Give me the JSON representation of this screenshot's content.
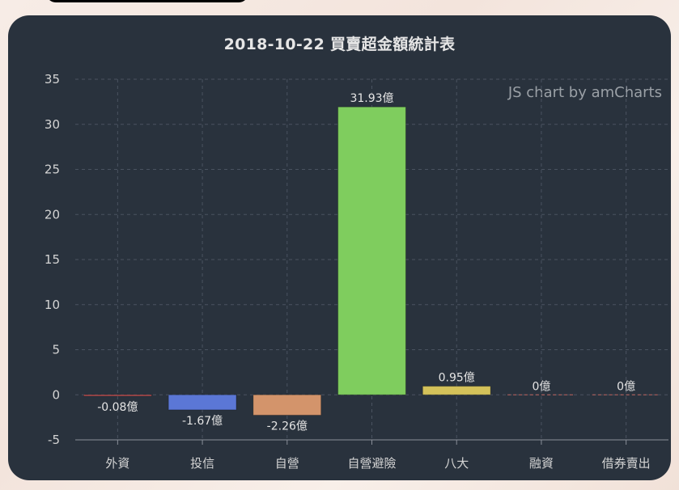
{
  "window": {
    "topbar": ""
  },
  "chart_data": {
    "type": "bar",
    "title": "2018-10-22 買賣超金額統計表",
    "credit": "JS chart by amCharts",
    "xlabel": "",
    "ylabel": "",
    "unit": "億",
    "ylim": [
      -5,
      35
    ],
    "yticks": [
      35,
      30,
      25,
      20,
      15,
      10,
      5,
      0,
      -5
    ],
    "grid": true,
    "legend": "none",
    "categories": [
      "外資",
      "投信",
      "自營",
      "自營避險",
      "八大",
      "融資",
      "借券賣出"
    ],
    "values": [
      -0.08,
      -1.67,
      -2.26,
      31.93,
      0.95,
      0,
      0
    ],
    "labels": [
      "-0.08億",
      "-1.67億",
      "-2.26億",
      "31.93億",
      "0.95億",
      "0億",
      "0億"
    ],
    "colors": [
      "#d75a5a",
      "#5b77d6",
      "#d3946b",
      "#7fcd5e",
      "#d4c25a",
      "#c0645f",
      "#c0645f"
    ]
  },
  "colors": {
    "background": "#29323d",
    "text": "#e6e6e6",
    "grid": "#4a5360",
    "axis": "#8a9099"
  }
}
